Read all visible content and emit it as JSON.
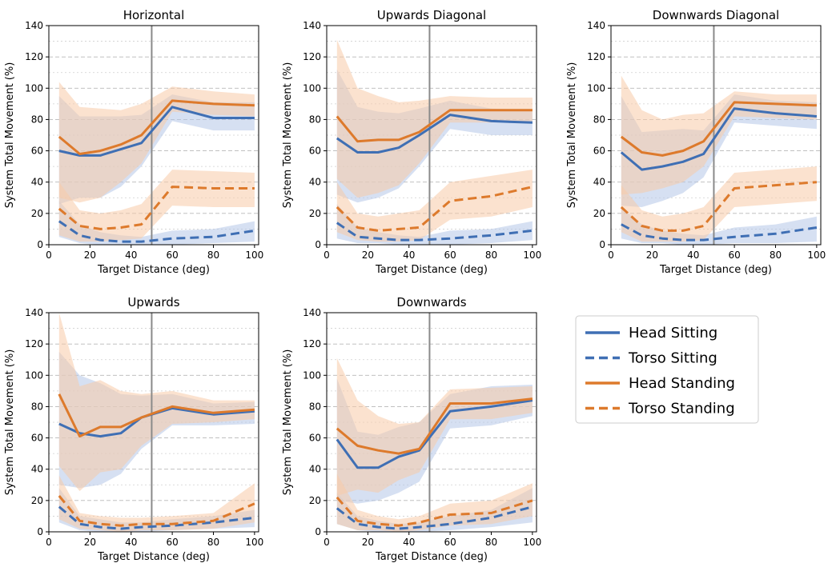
{
  "chart_data": {
    "type": "line",
    "x_label": "Target Distance (deg)",
    "y_label": "System Total Movement (%)",
    "xlim": [
      0,
      102
    ],
    "ylim": [
      0,
      140
    ],
    "x_ticks": [
      0,
      20,
      40,
      60,
      80,
      100
    ],
    "y_ticks": [
      0,
      20,
      40,
      60,
      80,
      100,
      120,
      140
    ],
    "grid": "horizontal dashed",
    "reference_line_x": 50,
    "x": [
      5,
      15,
      25,
      35,
      45,
      60,
      80,
      100
    ],
    "legend": [
      {
        "name": "Head Sitting",
        "color": "#3f6fb4",
        "dash": "solid"
      },
      {
        "name": "Torso Sitting",
        "color": "#3f6fb4",
        "dash": "dashed"
      },
      {
        "name": "Head Standing",
        "color": "#dd7a2c",
        "dash": "solid"
      },
      {
        "name": "Torso Standing",
        "color": "#dd7a2c",
        "dash": "dashed"
      }
    ],
    "colors": {
      "sitting": "#3f6fb4",
      "standing": "#dd7a2c",
      "sitting_band": "#b4c7e7",
      "standing_band": "#f8cba8"
    },
    "panels": [
      {
        "title": "Horizontal",
        "series": [
          {
            "name": "Head Sitting",
            "values": [
              60,
              57,
              57,
              61,
              65,
              88,
              81,
              81
            ],
            "lower": [
              26,
              30,
              30,
              37,
              50,
              79,
              73,
              73
            ],
            "upper": [
              95,
              82,
              82,
              82,
              83,
              96,
              91,
              91
            ]
          },
          {
            "name": "Torso Sitting",
            "values": [
              15,
              6,
              3,
              2,
              2,
              4,
              5,
              9
            ],
            "lower": [
              5,
              1,
              0,
              0,
              0,
              0,
              1,
              2
            ],
            "upper": [
              28,
              13,
              8,
              6,
              5,
              9,
              10,
              15
            ]
          },
          {
            "name": "Head Standing",
            "values": [
              69,
              58,
              60,
              64,
              70,
              92,
              90,
              89
            ],
            "lower": [
              30,
              27,
              30,
              40,
              52,
              85,
              83,
              82
            ],
            "upper": [
              104,
              88,
              87,
              86,
              90,
              101,
              98,
              96
            ]
          },
          {
            "name": "Torso Standing",
            "values": [
              23,
              12,
              10,
              11,
              13,
              37,
              36,
              36
            ],
            "lower": [
              6,
              2,
              2,
              3,
              4,
              25,
              24,
              24
            ],
            "upper": [
              40,
              22,
              20,
              22,
              26,
              48,
              47,
              46
            ]
          }
        ]
      },
      {
        "title": "Upwards Diagonal",
        "series": [
          {
            "name": "Head Sitting",
            "values": [
              68,
              59,
              59,
              62,
              70,
              83,
              79,
              78
            ],
            "lower": [
              32,
              27,
              30,
              36,
              50,
              74,
              70,
              70
            ],
            "upper": [
              112,
              88,
              85,
              84,
              87,
              92,
              87,
              86
            ]
          },
          {
            "name": "Torso Sitting",
            "values": [
              14,
              5,
              4,
              3,
              3,
              4,
              6,
              9
            ],
            "lower": [
              4,
              1,
              1,
              0,
              0,
              0,
              1,
              3
            ],
            "upper": [
              26,
              11,
              8,
              6,
              5,
              9,
              10,
              15
            ]
          },
          {
            "name": "Head Standing",
            "values": [
              82,
              66,
              67,
              67,
              72,
              86,
              86,
              86
            ],
            "lower": [
              42,
              30,
              33,
              38,
              52,
              78,
              78,
              79
            ],
            "upper": [
              131,
              100,
              95,
              91,
              92,
              95,
              94,
              94
            ]
          },
          {
            "name": "Torso Standing",
            "values": [
              24,
              11,
              9,
              10,
              11,
              28,
              31,
              37
            ],
            "lower": [
              8,
              3,
              2,
              2,
              3,
              16,
              18,
              24
            ],
            "upper": [
              40,
              20,
              18,
              20,
              22,
              40,
              44,
              48
            ]
          }
        ]
      },
      {
        "title": "Downwards Diagonal",
        "series": [
          {
            "name": "Head Sitting",
            "values": [
              59,
              48,
              50,
              53,
              58,
              87,
              84,
              82
            ],
            "lower": [
              25,
              24,
              28,
              33,
              43,
              78,
              76,
              74
            ],
            "upper": [
              95,
              72,
              73,
              74,
              73,
              96,
              92,
              91
            ]
          },
          {
            "name": "Torso Sitting",
            "values": [
              13,
              6,
              4,
              3,
              3,
              5,
              7,
              11
            ],
            "lower": [
              4,
              1,
              1,
              0,
              0,
              1,
              1,
              2
            ],
            "upper": [
              24,
              13,
              9,
              7,
              6,
              11,
              13,
              18
            ]
          },
          {
            "name": "Head Standing",
            "values": [
              69,
              59,
              57,
              60,
              66,
              91,
              90,
              89
            ],
            "lower": [
              32,
              33,
              36,
              40,
              50,
              82,
              81,
              80
            ],
            "upper": [
              108,
              86,
              80,
              83,
              84,
              98,
              96,
              96
            ]
          },
          {
            "name": "Torso Standing",
            "values": [
              24,
              12,
              9,
              9,
              12,
              36,
              38,
              40
            ],
            "lower": [
              8,
              2,
              2,
              2,
              3,
              24,
              26,
              28
            ],
            "upper": [
              38,
              22,
              18,
              20,
              24,
              46,
              48,
              50
            ]
          }
        ]
      },
      {
        "title": "Upwards",
        "series": [
          {
            "name": "Head Sitting",
            "values": [
              69,
              63,
              61,
              63,
              73,
              79,
              75,
              77
            ],
            "lower": [
              30,
              28,
              30,
              37,
              53,
              68,
              68,
              69
            ],
            "upper": [
              115,
              100,
              95,
              88,
              87,
              88,
              82,
              83
            ]
          },
          {
            "name": "Torso Sitting",
            "values": [
              16,
              5,
              3,
              2,
              3,
              4,
              6,
              9
            ],
            "lower": [
              6,
              1,
              0,
              0,
              0,
              1,
              2,
              3
            ],
            "upper": [
              28,
              10,
              8,
              6,
              6,
              8,
              10,
              14
            ]
          },
          {
            "name": "Head Standing",
            "values": [
              88,
              61,
              67,
              67,
              73,
              80,
              76,
              78
            ],
            "lower": [
              42,
              26,
              38,
              40,
              55,
              69,
              70,
              72
            ],
            "upper": [
              140,
              93,
              97,
              90,
              88,
              90,
              84,
              84
            ]
          },
          {
            "name": "Torso Standing",
            "values": [
              23,
              7,
              5,
              4,
              5,
              5,
              7,
              18
            ],
            "lower": [
              8,
              2,
              1,
              0,
              1,
              1,
              2,
              6
            ],
            "upper": [
              36,
              12,
              10,
              9,
              9,
              10,
              12,
              31
            ]
          }
        ]
      },
      {
        "title": "Downwards",
        "series": [
          {
            "name": "Head Sitting",
            "values": [
              59,
              41,
              41,
              48,
              52,
              77,
              80,
              84
            ],
            "lower": [
              20,
              18,
              20,
              25,
              32,
              66,
              68,
              74
            ],
            "upper": [
              98,
              64,
              62,
              67,
              70,
              88,
              93,
              94
            ]
          },
          {
            "name": "Torso Sitting",
            "values": [
              15,
              5,
              3,
              2,
              3,
              5,
              9,
              16
            ],
            "lower": [
              5,
              1,
              0,
              0,
              0,
              1,
              3,
              6
            ],
            "upper": [
              25,
              10,
              7,
              5,
              6,
              10,
              14,
              28
            ]
          },
          {
            "name": "Head Standing",
            "values": [
              66,
              55,
              52,
              50,
              53,
              82,
              82,
              85
            ],
            "lower": [
              23,
              27,
              25,
              33,
              38,
              72,
              72,
              76
            ],
            "upper": [
              111,
              84,
              74,
              69,
              70,
              91,
              92,
              93
            ]
          },
          {
            "name": "Torso Standing",
            "values": [
              22,
              7,
              5,
              4,
              6,
              11,
              12,
              20
            ],
            "lower": [
              5,
              1,
              1,
              0,
              1,
              4,
              5,
              10
            ],
            "upper": [
              37,
              14,
              10,
              8,
              10,
              18,
              20,
              31
            ]
          }
        ]
      }
    ]
  }
}
